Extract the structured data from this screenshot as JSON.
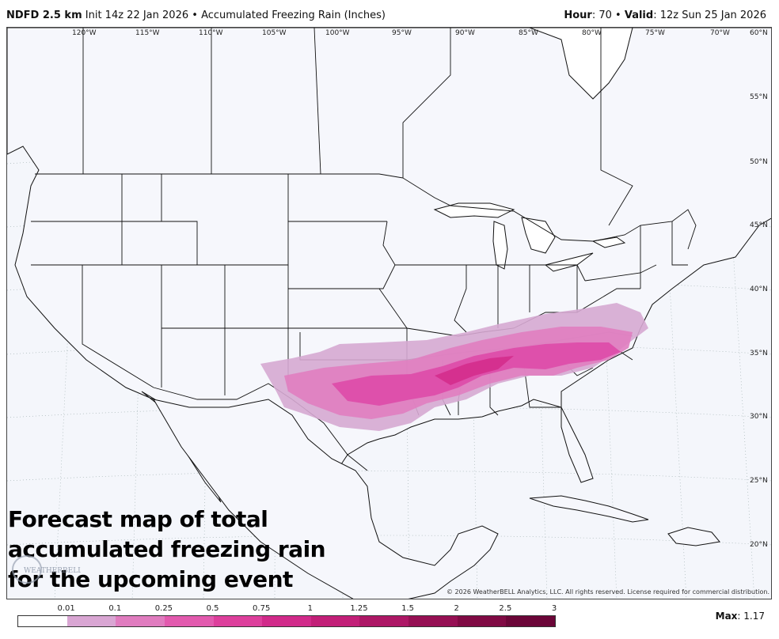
{
  "header": {
    "model": "NDFD 2.5 km",
    "init": "Init 14z 22 Jan 2026",
    "separator": "•",
    "product": "Accumulated Freezing Rain (Inches)",
    "hour_label": "Hour",
    "hour_value": ": 70",
    "valid_label": "Valid",
    "valid_value": ": 12z Sun 25 Jan 2026"
  },
  "map": {
    "longitude_labels": [
      "120°W",
      "115°W",
      "110°W",
      "105°W",
      "100°W",
      "95°W",
      "90°W",
      "85°W",
      "80°W",
      "75°W",
      "70°W"
    ],
    "latitude_labels": [
      "60°N",
      "55°N",
      "50°N",
      "45°N",
      "40°N",
      "35°N",
      "30°N",
      "25°N",
      "20°N"
    ],
    "accumulation_colors": [
      "#d6a8d2",
      "#e07ec0",
      "#de4aa8",
      "#d42c8c"
    ]
  },
  "caption": {
    "line1": "Forecast map of total",
    "line2": "accumulated freezing rain",
    "line3": "for the upcoming event"
  },
  "logo": {
    "text": "WEATHERBELL"
  },
  "copyright": "© 2026 WeatherBELL Analytics, LLC. All rights reserved. License required for commercial distribution.",
  "legend": {
    "ticks": [
      "0.01",
      "0.1",
      "0.25",
      "0.5",
      "0.75",
      "1",
      "1.25",
      "1.5",
      "2",
      "2.5",
      "3"
    ],
    "colors": [
      "#ffffff",
      "#d9a6d3",
      "#e07cbf",
      "#e25aae",
      "#dd3f9c",
      "#d12a8a",
      "#c21f78",
      "#ad1766",
      "#961054",
      "#800a44",
      "#6b0638"
    ]
  },
  "max": {
    "label": "Max",
    "value": ": 1.17"
  }
}
